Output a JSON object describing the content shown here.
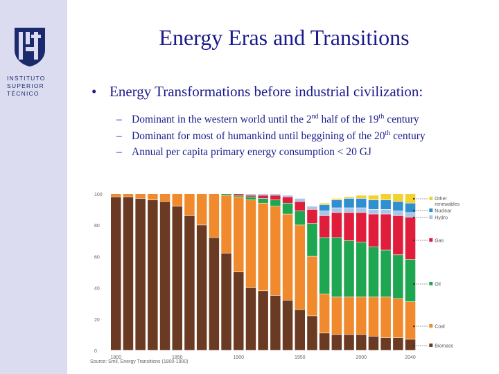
{
  "logo": {
    "lines": [
      "INSTITUTO",
      "SUPERIOR",
      "TÉCNICO"
    ],
    "mark": "ist"
  },
  "slide": {
    "title": "Energy Eras and Transitions",
    "bullet": "Energy Transformations before industrial civilization:",
    "subs": [
      {
        "pre": "Dominant in the western world until the 2",
        "sup": "nd",
        "post": " half of the 19",
        "sup2": "th",
        "post2": " century"
      },
      {
        "pre": "Dominant for most of humankind until beggining of the 20",
        "sup": "th",
        "post": " century",
        "sup2": "",
        "post2": ""
      },
      {
        "pre": "Annual per capita primary energy consumption < 20 GJ",
        "sup": "",
        "post": "",
        "sup2": "",
        "post2": ""
      }
    ],
    "source": "Source: Smil, Energy Transitions (1800-1900)"
  },
  "colors": {
    "sidebar": "#dcdcf0",
    "text": "#1a1a8c",
    "biomass": "#6b3a23",
    "coal": "#f08a2c",
    "oil": "#1ea650",
    "gas": "#e01e3c",
    "hydro": "#a9c6ea",
    "nuclear": "#2f8fd0",
    "other": "#f2d22e"
  },
  "chart_data": {
    "type": "bar",
    "stacked": true,
    "ylim": [
      0,
      100
    ],
    "yticks": [
      "0",
      "20",
      "40",
      "60",
      "80",
      "100"
    ],
    "xticks": [
      "1800",
      "1850",
      "1900",
      "1950",
      "2000",
      "2040"
    ],
    "categories": [
      "1800",
      "1810",
      "1820",
      "1830",
      "1840",
      "1850",
      "1860",
      "1870",
      "1880",
      "1890",
      "1900",
      "1910",
      "1920",
      "1930",
      "1940",
      "1950",
      "1960",
      "1970",
      "1980",
      "1990",
      "2000",
      "2010",
      "2020",
      "2030",
      "2040"
    ],
    "series": [
      {
        "name": "Biomass",
        "values": [
          98,
          98,
          97,
          96,
          95,
          92,
          86,
          80,
          72,
          62,
          50,
          40,
          38,
          35,
          32,
          26,
          22,
          11,
          10,
          10,
          10,
          9,
          8,
          8,
          7
        ]
      },
      {
        "name": "Coal",
        "values": [
          2,
          2,
          3,
          4,
          5,
          8,
          14,
          20,
          28,
          37,
          48,
          56,
          56,
          57,
          55,
          54,
          38,
          25,
          24,
          24,
          24,
          25,
          26,
          25,
          24
        ]
      },
      {
        "name": "Oil",
        "values": [
          0,
          0,
          0,
          0,
          0,
          0,
          0,
          0,
          0,
          1,
          1,
          2,
          3,
          4,
          7,
          9,
          21,
          36,
          38,
          36,
          35,
          32,
          30,
          28,
          27
        ]
      },
      {
        "name": "Gas",
        "values": [
          0,
          0,
          0,
          0,
          0,
          0,
          0,
          0,
          0,
          0,
          1,
          1,
          2,
          3,
          4,
          6,
          9,
          14,
          16,
          18,
          19,
          21,
          23,
          25,
          27
        ]
      },
      {
        "name": "Hydro",
        "values": [
          0,
          0,
          0,
          0,
          0,
          0,
          0,
          0,
          0,
          0,
          0,
          1,
          1,
          1,
          1,
          2,
          2,
          3,
          3,
          3,
          3,
          3,
          3,
          3,
          3
        ]
      },
      {
        "name": "Nuclear",
        "values": [
          0,
          0,
          0,
          0,
          0,
          0,
          0,
          0,
          0,
          0,
          0,
          0,
          0,
          0,
          0,
          0,
          0,
          4,
          5,
          6,
          6,
          6,
          6,
          6,
          6
        ]
      },
      {
        "name": "Other renewables",
        "values": [
          0,
          0,
          0,
          0,
          0,
          0,
          0,
          0,
          0,
          0,
          0,
          0,
          0,
          0,
          0,
          0,
          0,
          1,
          1,
          1,
          2,
          3,
          4,
          5,
          6
        ]
      }
    ],
    "legend": [
      "Other renewables",
      "Nuclear",
      "Hydro",
      "Gas",
      "Oil",
      "Coal",
      "Biomass"
    ],
    "legend_position": "right"
  }
}
